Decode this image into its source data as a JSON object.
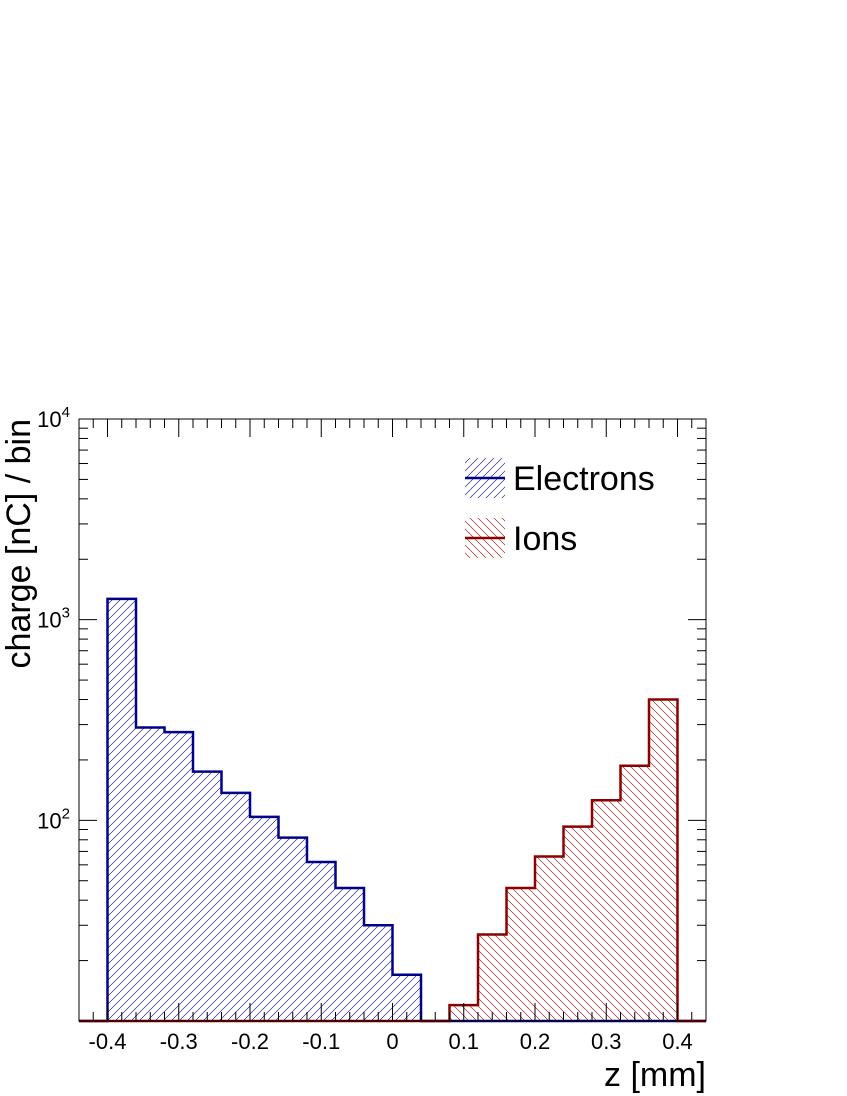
{
  "chart_data": {
    "type": "bar",
    "title": "",
    "xlabel": "z [mm]",
    "ylabel": "charge [nC] / bin",
    "xlim": [
      -0.44,
      0.44
    ],
    "ylim": [
      10,
      10000
    ],
    "yscale": "log",
    "x_ticks": [
      "-0.4",
      "-0.3",
      "-0.2",
      "-0.1",
      "0",
      "0.1",
      "0.2",
      "0.3",
      "0.4"
    ],
    "y_ticks": [
      {
        "base": "10",
        "exp": "2"
      },
      {
        "base": "10",
        "exp": "3"
      },
      {
        "base": "10",
        "exp": "4"
      }
    ],
    "bin_edges": [
      -0.4,
      -0.36,
      -0.32,
      -0.28,
      -0.24,
      -0.2,
      -0.16,
      -0.12,
      -0.08,
      -0.04,
      0.0,
      0.04,
      0.08,
      0.12,
      0.16,
      0.2,
      0.24,
      0.28,
      0.32,
      0.36,
      0.4
    ],
    "series": [
      {
        "name": "Electrons",
        "color": "#00008b",
        "fill": "hatch-forward",
        "values": [
          1270,
          290,
          275,
          175,
          137,
          104,
          82,
          62,
          46,
          30,
          17,
          0,
          0,
          0,
          0,
          0,
          0,
          0,
          0,
          0
        ]
      },
      {
        "name": "Ions",
        "color": "#8b0000",
        "fill": "hatch-backward",
        "values": [
          0,
          0,
          0,
          0,
          0,
          0,
          0,
          0,
          0,
          0,
          0,
          0,
          12,
          27,
          46,
          66,
          93,
          126,
          187,
          400
        ]
      }
    ],
    "legend_position": "top-right",
    "grid": false
  }
}
